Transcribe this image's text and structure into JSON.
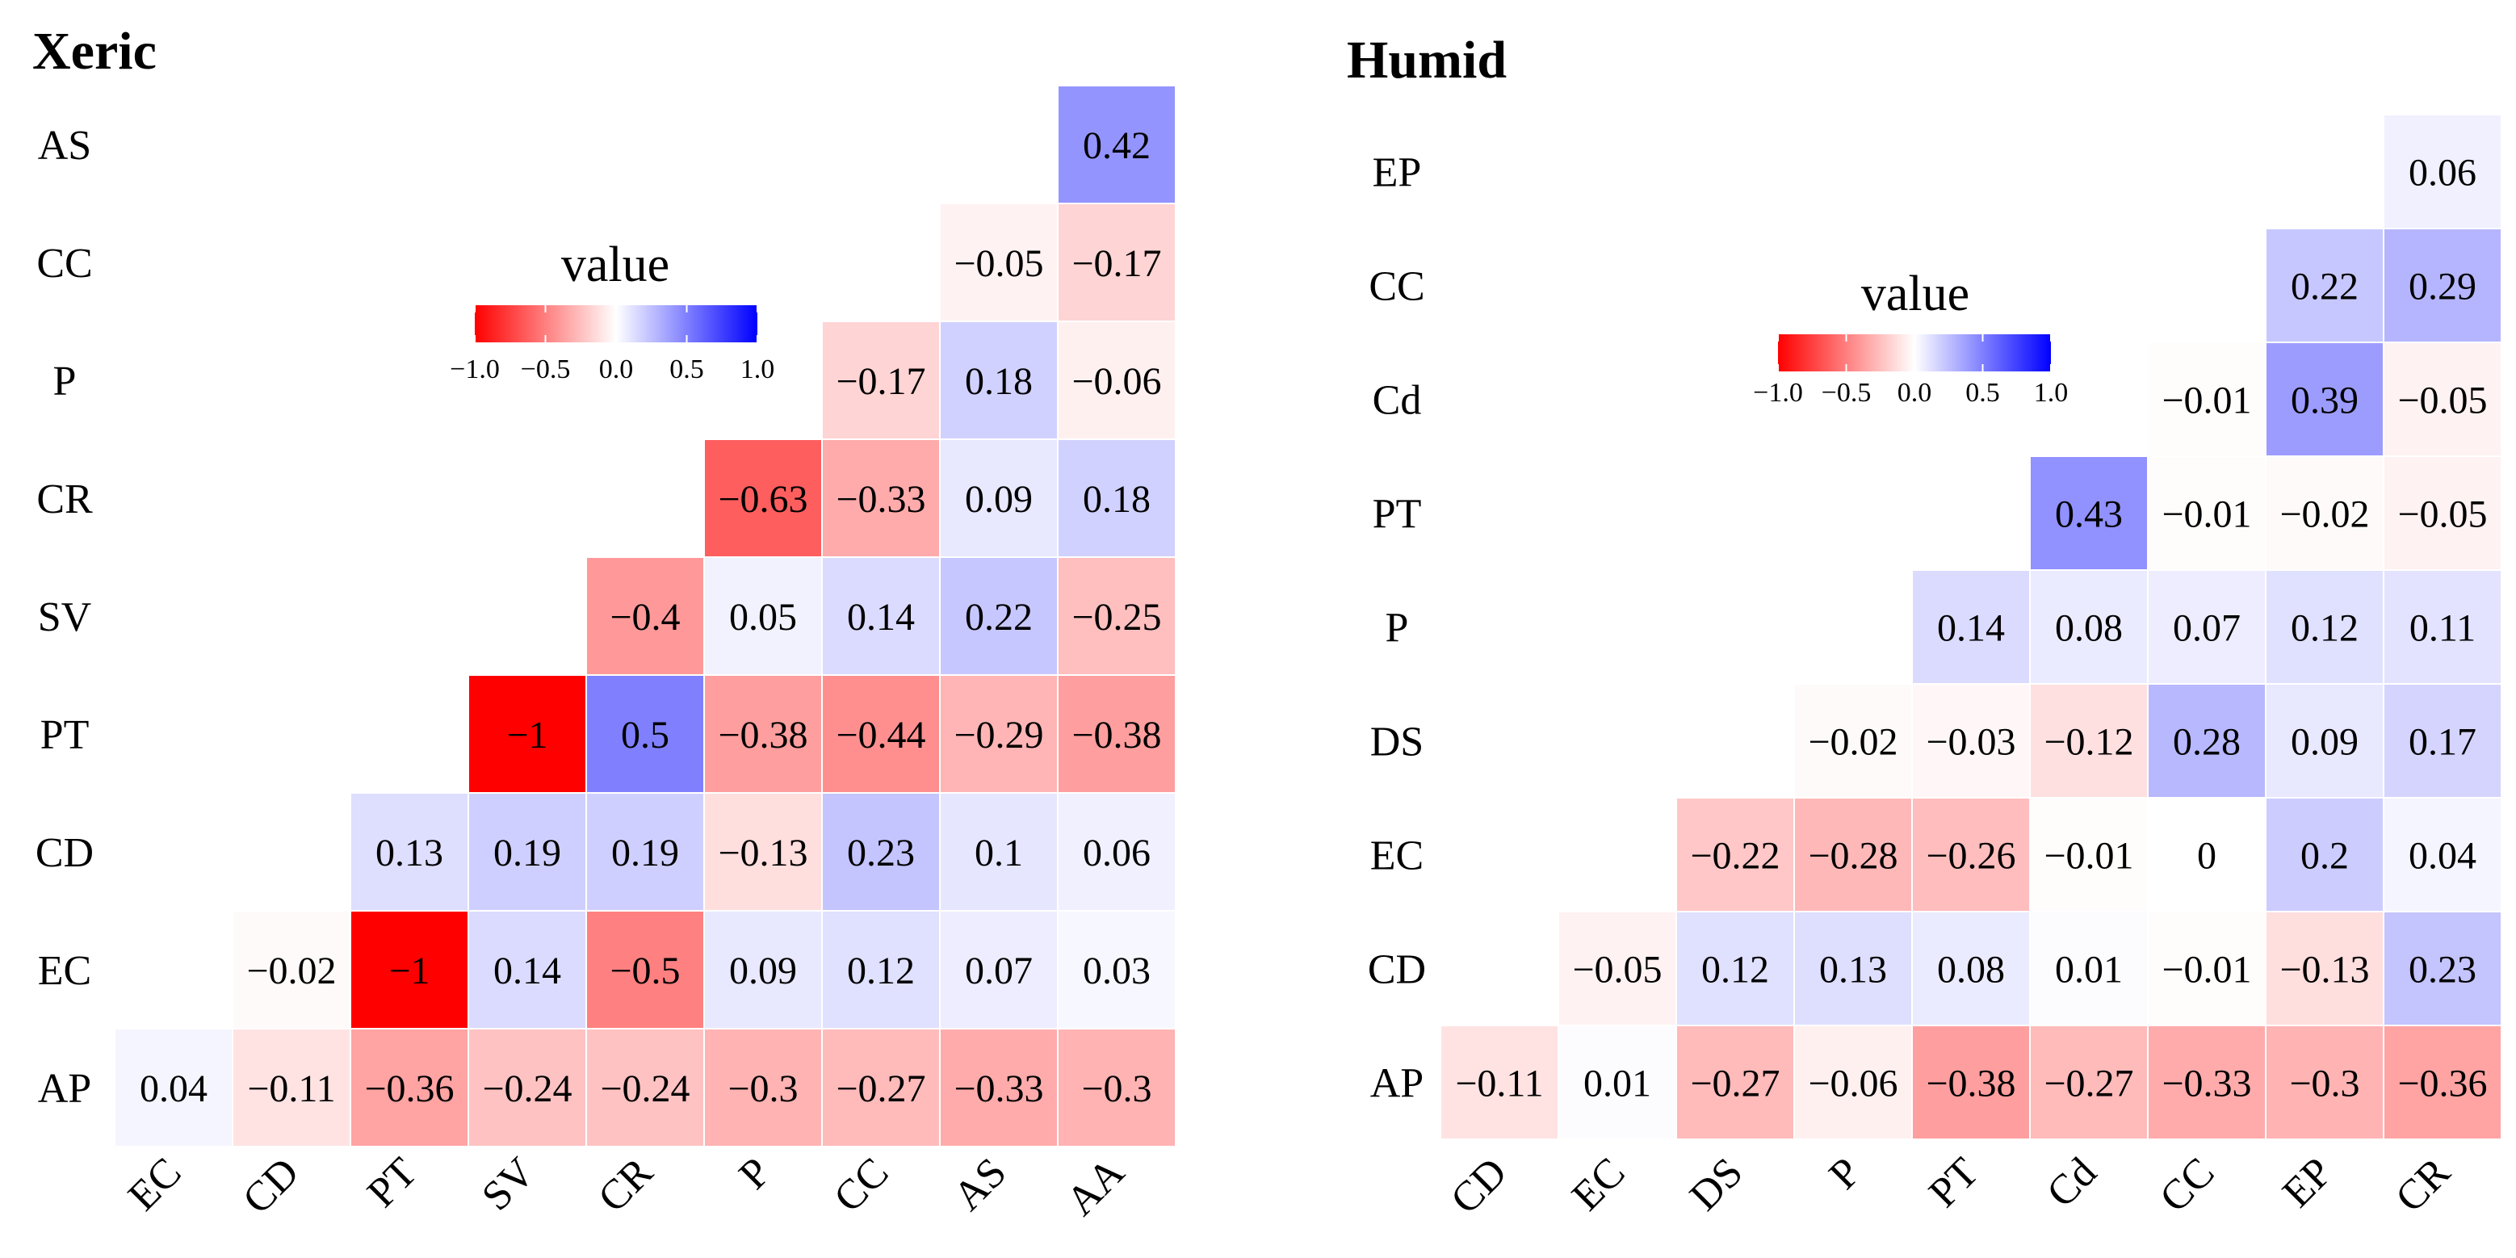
{
  "chart_data": [
    {
      "type": "heatmap",
      "title": "Xeric",
      "rows": [
        "AS",
        "CC",
        "P",
        "CR",
        "SV",
        "PT",
        "CD",
        "EC",
        "AP"
      ],
      "columns": [
        "EC",
        "CD",
        "PT",
        "SV",
        "CR",
        "P",
        "CC",
        "AS",
        "AA"
      ],
      "values": [
        [
          null,
          null,
          null,
          null,
          null,
          null,
          null,
          null,
          0.42
        ],
        [
          null,
          null,
          null,
          null,
          null,
          null,
          null,
          -0.05,
          -0.17
        ],
        [
          null,
          null,
          null,
          null,
          null,
          null,
          -0.17,
          0.18,
          -0.06
        ],
        [
          null,
          null,
          null,
          null,
          null,
          -0.63,
          -0.33,
          0.09,
          0.18
        ],
        [
          null,
          null,
          null,
          null,
          -0.4,
          0.05,
          0.14,
          0.22,
          -0.25
        ],
        [
          null,
          null,
          null,
          -1,
          0.5,
          -0.38,
          -0.44,
          -0.29,
          -0.38
        ],
        [
          null,
          null,
          0.13,
          0.19,
          0.19,
          -0.13,
          0.23,
          0.1,
          0.06
        ],
        [
          null,
          -0.02,
          -1,
          0.14,
          -0.5,
          0.09,
          0.12,
          0.07,
          0.03
        ],
        [
          0.04,
          -0.11,
          -0.36,
          -0.24,
          -0.24,
          -0.3,
          -0.27,
          -0.33,
          -0.3
        ]
      ],
      "legend": {
        "title": "value",
        "ticks": [
          "−1.0",
          "−0.5",
          "0.0",
          "0.5",
          "1.0"
        ],
        "range": [
          -1,
          1
        ],
        "low_color": "#ff0000",
        "mid_color": "#ffffff",
        "high_color": "#0000ff"
      }
    },
    {
      "type": "heatmap",
      "title": "Humid",
      "rows": [
        "EP",
        "CC",
        "Cd",
        "PT",
        "P",
        "DS",
        "EC",
        "CD",
        "AP"
      ],
      "columns": [
        "CD",
        "EC",
        "DS",
        "P",
        "PT",
        "Cd",
        "CC",
        "EP",
        "CR"
      ],
      "values": [
        [
          null,
          null,
          null,
          null,
          null,
          null,
          null,
          null,
          0.06
        ],
        [
          null,
          null,
          null,
          null,
          null,
          null,
          null,
          0.22,
          0.29
        ],
        [
          null,
          null,
          null,
          null,
          null,
          null,
          -0.01,
          0.39,
          -0.05
        ],
        [
          null,
          null,
          null,
          null,
          null,
          0.43,
          -0.01,
          -0.02,
          -0.05
        ],
        [
          null,
          null,
          null,
          null,
          0.14,
          0.08,
          0.07,
          0.12,
          0.11
        ],
        [
          null,
          null,
          null,
          -0.02,
          -0.03,
          -0.12,
          0.28,
          0.09,
          0.17
        ],
        [
          null,
          null,
          -0.22,
          -0.28,
          -0.26,
          -0.01,
          0,
          0.2,
          0.04
        ],
        [
          null,
          -0.05,
          0.12,
          0.13,
          0.08,
          0.01,
          -0.01,
          -0.13,
          0.23
        ],
        [
          -0.11,
          0.01,
          -0.27,
          -0.06,
          -0.38,
          -0.27,
          -0.33,
          -0.3,
          -0.36
        ]
      ],
      "legend": {
        "title": "value",
        "ticks": [
          "−1.0",
          "−0.5",
          "0.0",
          "0.5",
          "1.0"
        ],
        "range": [
          -1,
          1
        ],
        "low_color": "#ff0000",
        "mid_color": "#ffffff",
        "high_color": "#0000ff"
      }
    }
  ]
}
